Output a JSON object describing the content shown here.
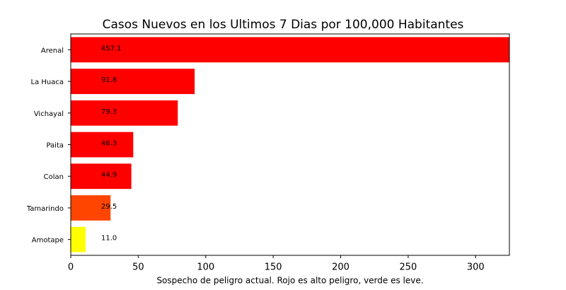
{
  "chart_data": {
    "type": "barh",
    "title": "Casos Nuevos en los Ultimos 7 Dias por 100,000 Habitantes",
    "xlabel": "Sospecho de peligro actual. Rojo es alto peligro, verde es leve.",
    "categories": [
      "Arenal",
      "La Huaca",
      "Vichayal",
      "Paita",
      "Colan",
      "Tamarindo",
      "Amotape"
    ],
    "values": [
      457.1,
      91.8,
      79.3,
      46.3,
      44.9,
      29.5,
      11.0
    ],
    "value_labels": [
      "457.1",
      "91.8",
      "79.3",
      "46.3",
      "44.9",
      "29.5",
      "11.0"
    ],
    "colors": [
      "#ff0000",
      "#ff0000",
      "#ff0000",
      "#ff0000",
      "#ff0000",
      "#ff4500",
      "#ffff00"
    ],
    "xlim": [
      0,
      325
    ],
    "xticks": [
      0,
      50,
      100,
      150,
      200,
      250,
      300
    ]
  }
}
